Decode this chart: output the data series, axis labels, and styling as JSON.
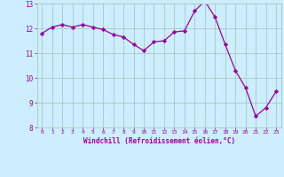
{
  "x": [
    0,
    1,
    2,
    3,
    4,
    5,
    6,
    7,
    8,
    9,
    10,
    11,
    12,
    13,
    14,
    15,
    16,
    17,
    18,
    19,
    20,
    21,
    22,
    23
  ],
  "y": [
    11.8,
    12.05,
    12.15,
    12.05,
    12.15,
    12.05,
    11.95,
    11.75,
    11.65,
    11.35,
    11.1,
    11.45,
    11.5,
    11.85,
    11.9,
    12.7,
    13.1,
    12.45,
    11.35,
    10.3,
    9.6,
    8.45,
    8.8,
    9.45
  ],
  "line_color": "#990099",
  "marker": "D",
  "marker_size": 2.2,
  "bg_color": "#cceeff",
  "grid_color": "#aacccc",
  "xlabel": "Windchill (Refroidissement éolien,°C)",
  "xlabel_color": "#990099",
  "tick_color": "#990099",
  "ylim": [
    8,
    13
  ],
  "xlim": [
    -0.5,
    23.5
  ],
  "yticks": [
    8,
    9,
    10,
    11,
    12,
    13
  ],
  "xticks": [
    0,
    1,
    2,
    3,
    4,
    5,
    6,
    7,
    8,
    9,
    10,
    11,
    12,
    13,
    14,
    15,
    16,
    17,
    18,
    19,
    20,
    21,
    22,
    23
  ]
}
